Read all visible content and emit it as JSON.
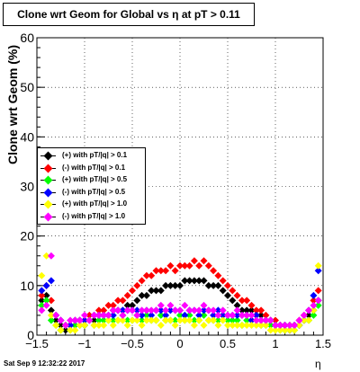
{
  "title": "Clone wrt Geom for Global vs   η at pT > 0.11",
  "footer": "Sat Sep  9 12:32:22 2017",
  "chart_data": {
    "type": "scatter",
    "xlabel": "η",
    "ylabel": "Clone wrt Geom (%)",
    "xlim": [
      -1.5,
      1.5
    ],
    "ylim": [
      0,
      60
    ],
    "xticks": [
      -1.5,
      -1,
      -0.5,
      0,
      0.5,
      1,
      1.5
    ],
    "xtick_labels": [
      "−1.5",
      "−1",
      "−0.5",
      "0",
      "0.5",
      "1",
      "1.5"
    ],
    "yticks": [
      0,
      10,
      20,
      30,
      40,
      50,
      60
    ],
    "ytick_labels": [
      "0",
      "10",
      "20",
      "30",
      "40",
      "50",
      "60"
    ],
    "grid": true,
    "legend_position": "left-middle",
    "series": [
      {
        "name": "(+) with pT/|q| > 0.1",
        "color": "#000000",
        "x": [
          -1.45,
          -1.4,
          -1.35,
          -1.3,
          -1.25,
          -1.2,
          -1.15,
          -1.1,
          -1.05,
          -1.0,
          -0.95,
          -0.9,
          -0.85,
          -0.8,
          -0.75,
          -0.7,
          -0.65,
          -0.6,
          -0.55,
          -0.5,
          -0.45,
          -0.4,
          -0.35,
          -0.3,
          -0.25,
          -0.2,
          -0.15,
          -0.1,
          -0.05,
          0.0,
          0.05,
          0.1,
          0.15,
          0.2,
          0.25,
          0.3,
          0.35,
          0.4,
          0.45,
          0.5,
          0.55,
          0.6,
          0.65,
          0.7,
          0.75,
          0.8,
          0.85,
          0.9,
          0.95,
          1.0,
          1.05,
          1.1,
          1.15,
          1.2,
          1.25,
          1.3,
          1.35,
          1.4,
          1.45
        ],
        "y": [
          7,
          8,
          5,
          3,
          2,
          1,
          2,
          2,
          3,
          2,
          3,
          3,
          4,
          4,
          4,
          5,
          5,
          5,
          6,
          6,
          7,
          8,
          8,
          9,
          9,
          9,
          10,
          10,
          10,
          10,
          11,
          11,
          11,
          11,
          11,
          10,
          10,
          10,
          9,
          8,
          7,
          6,
          5,
          5,
          5,
          4,
          4,
          3,
          3,
          2,
          2,
          2,
          1,
          2,
          2,
          3,
          4,
          5,
          7
        ]
      },
      {
        "name": "(-) with pT/|q| > 0.1",
        "color": "#ff0000",
        "x": [
          -1.45,
          -1.4,
          -1.35,
          -1.3,
          -1.25,
          -1.2,
          -1.15,
          -1.1,
          -1.05,
          -1.0,
          -0.95,
          -0.9,
          -0.85,
          -0.8,
          -0.75,
          -0.7,
          -0.65,
          -0.6,
          -0.55,
          -0.5,
          -0.45,
          -0.4,
          -0.35,
          -0.3,
          -0.25,
          -0.2,
          -0.15,
          -0.1,
          -0.05,
          0.0,
          0.05,
          0.1,
          0.15,
          0.2,
          0.25,
          0.3,
          0.35,
          0.4,
          0.45,
          0.5,
          0.55,
          0.6,
          0.65,
          0.7,
          0.75,
          0.8,
          0.85,
          0.9,
          0.95,
          1.0,
          1.05,
          1.1,
          1.15,
          1.2,
          1.25,
          1.3,
          1.35,
          1.4,
          1.45
        ],
        "y": [
          8,
          10,
          7,
          4,
          3,
          2,
          2,
          3,
          3,
          3,
          4,
          4,
          5,
          5,
          6,
          6,
          7,
          7,
          8,
          9,
          10,
          11,
          12,
          12,
          13,
          13,
          13,
          14,
          13,
          14,
          14,
          14,
          15,
          14,
          15,
          14,
          13,
          12,
          11,
          10,
          9,
          8,
          7,
          7,
          6,
          5,
          5,
          4,
          3,
          3,
          2,
          2,
          2,
          2,
          3,
          4,
          5,
          7,
          9
        ]
      },
      {
        "name": "(+) with pT/|q| > 0.5",
        "color": "#00ff00",
        "x": [
          -1.45,
          -1.4,
          -1.35,
          -1.3,
          -1.25,
          -1.2,
          -1.15,
          -1.1,
          -1.05,
          -1.0,
          -0.95,
          -0.9,
          -0.85,
          -0.8,
          -0.75,
          -0.7,
          -0.65,
          -0.6,
          -0.55,
          -0.5,
          -0.45,
          -0.4,
          -0.35,
          -0.3,
          -0.25,
          -0.2,
          -0.15,
          -0.1,
          -0.05,
          0.0,
          0.05,
          0.1,
          0.15,
          0.2,
          0.25,
          0.3,
          0.35,
          0.4,
          0.45,
          0.5,
          0.55,
          0.6,
          0.65,
          0.7,
          0.75,
          0.8,
          0.85,
          0.9,
          0.95,
          1.0,
          1.05,
          1.1,
          1.15,
          1.2,
          1.25,
          1.3,
          1.35,
          1.4,
          1.45
        ],
        "y": [
          6,
          7,
          3,
          2,
          1,
          2,
          1,
          2,
          2,
          2,
          3,
          2,
          3,
          3,
          3,
          3,
          3,
          4,
          3,
          3,
          4,
          3,
          4,
          3,
          3,
          4,
          3,
          3,
          3,
          4,
          3,
          4,
          3,
          3,
          4,
          3,
          3,
          3,
          4,
          3,
          3,
          3,
          2,
          3,
          3,
          3,
          2,
          2,
          2,
          2,
          1,
          1,
          2,
          1,
          2,
          3,
          3,
          4,
          6
        ]
      },
      {
        "name": "(-) with pT/|q| > 0.5",
        "color": "#0000ff",
        "x": [
          -1.45,
          -1.4,
          -1.35,
          -1.3,
          -1.25,
          -1.2,
          -1.15,
          -1.1,
          -1.05,
          -1.0,
          -0.95,
          -0.9,
          -0.85,
          -0.8,
          -0.75,
          -0.7,
          -0.65,
          -0.6,
          -0.55,
          -0.5,
          -0.45,
          -0.4,
          -0.35,
          -0.3,
          -0.25,
          -0.2,
          -0.15,
          -0.1,
          -0.05,
          0.0,
          0.05,
          0.1,
          0.15,
          0.2,
          0.25,
          0.3,
          0.35,
          0.4,
          0.45,
          0.5,
          0.55,
          0.6,
          0.65,
          0.7,
          0.75,
          0.8,
          0.85,
          0.9,
          0.95,
          1.0,
          1.05,
          1.1,
          1.15,
          1.2,
          1.25,
          1.3,
          1.35,
          1.4,
          1.45
        ],
        "y": [
          9,
          10,
          11,
          4,
          3,
          2,
          2,
          3,
          3,
          3,
          3,
          4,
          4,
          4,
          4,
          4,
          5,
          5,
          5,
          5,
          5,
          4,
          5,
          4,
          5,
          5,
          4,
          5,
          5,
          5,
          4,
          5,
          5,
          4,
          5,
          5,
          4,
          5,
          4,
          4,
          4,
          4,
          4,
          4,
          3,
          4,
          3,
          3,
          3,
          2,
          2,
          2,
          1,
          2,
          2,
          3,
          5,
          8,
          13
        ]
      },
      {
        "name": "(+) with pT/|q| > 1.0",
        "color": "#ffff00",
        "x": [
          -1.45,
          -1.4,
          -1.35,
          -1.3,
          -1.25,
          -1.2,
          -1.15,
          -1.1,
          -1.05,
          -1.0,
          -0.95,
          -0.9,
          -0.85,
          -0.8,
          -0.75,
          -0.7,
          -0.65,
          -0.6,
          -0.55,
          -0.5,
          -0.45,
          -0.4,
          -0.35,
          -0.3,
          -0.25,
          -0.2,
          -0.15,
          -0.1,
          -0.05,
          0.0,
          0.05,
          0.1,
          0.15,
          0.2,
          0.25,
          0.3,
          0.35,
          0.4,
          0.45,
          0.5,
          0.55,
          0.6,
          0.65,
          0.7,
          0.75,
          0.8,
          0.85,
          0.9,
          0.95,
          1.0,
          1.05,
          1.1,
          1.15,
          1.2,
          1.25,
          1.3,
          1.35,
          1.4,
          1.45
        ],
        "y": [
          12,
          16,
          4,
          2,
          1,
          2,
          1,
          1,
          2,
          2,
          3,
          2,
          2,
          2,
          3,
          2,
          3,
          3,
          2,
          3,
          3,
          2,
          3,
          3,
          3,
          2,
          3,
          3,
          2,
          3,
          3,
          3,
          2,
          3,
          2,
          3,
          3,
          2,
          3,
          2,
          2,
          2,
          2,
          2,
          2,
          2,
          2,
          2,
          1,
          1,
          1,
          1,
          1,
          1,
          2,
          3,
          3,
          5,
          14
        ]
      },
      {
        "name": "(-) with pT/|q| > 1.0",
        "color": "#ff00ff",
        "x": [
          -1.45,
          -1.4,
          -1.35,
          -1.3,
          -1.25,
          -1.2,
          -1.15,
          -1.1,
          -1.05,
          -1.0,
          -0.95,
          -0.9,
          -0.85,
          -0.8,
          -0.75,
          -0.7,
          -0.65,
          -0.6,
          -0.55,
          -0.5,
          -0.45,
          -0.4,
          -0.35,
          -0.3,
          -0.25,
          -0.2,
          -0.15,
          -0.1,
          -0.05,
          0.0,
          0.05,
          0.1,
          0.15,
          0.2,
          0.25,
          0.3,
          0.35,
          0.4,
          0.45,
          0.5,
          0.55,
          0.6,
          0.65,
          0.7,
          0.75,
          0.8,
          0.85,
          0.9,
          0.95,
          1.0,
          1.05,
          1.1,
          1.15,
          1.2,
          1.25,
          1.3,
          1.35,
          1.4,
          1.45
        ],
        "y": [
          5,
          6,
          16,
          4,
          3,
          2,
          3,
          3,
          3,
          4,
          3,
          4,
          4,
          4,
          4,
          5,
          5,
          4,
          5,
          5,
          4,
          5,
          5,
          5,
          5,
          6,
          5,
          6,
          5,
          5,
          6,
          5,
          5,
          5,
          6,
          5,
          5,
          4,
          5,
          4,
          4,
          5,
          4,
          4,
          4,
          3,
          3,
          3,
          3,
          2,
          2,
          2,
          2,
          2,
          3,
          4,
          5,
          6,
          7
        ]
      }
    ]
  }
}
